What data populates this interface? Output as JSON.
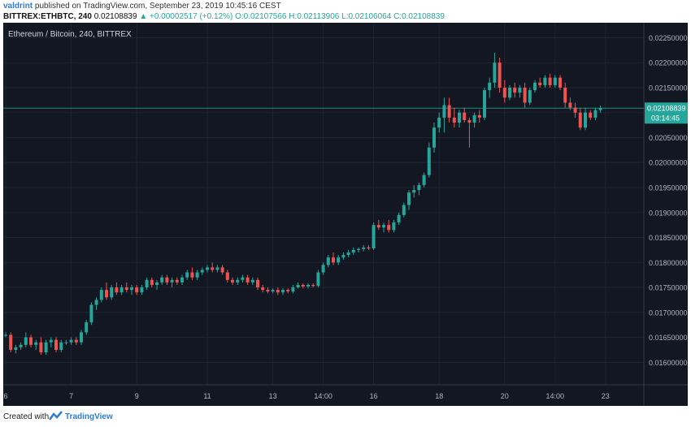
{
  "header": {
    "user": "valdrint",
    "published": "published on TradingView.com, September 23, 2019 10:45:16 CEST",
    "symbol": "BITTREX:ETHBTC, 240",
    "last": "0.02108839",
    "change": "+0.00002517 (+0.12%)",
    "ohlc": "O:0.02107566 H:0.02113906 L:0.02106064 C:0.02108839"
  },
  "footer": {
    "created": "Created with",
    "brand": "TradingView"
  },
  "chart_data": {
    "type": "candlestick",
    "title": "Ethereum / Bitcoin, 240, BITTREX",
    "ylim": [
      0.01555,
      0.0228
    ],
    "yticks": [
      "0.01600000",
      "0.01650000",
      "0.01700000",
      "0.01750000",
      "0.01800000",
      "0.01850000",
      "0.01900000",
      "0.01950000",
      "0.02000000",
      "0.02050000",
      "0.02100000",
      "0.02150000",
      "0.02200000",
      "0.02250000"
    ],
    "xticks": [
      {
        "label": "6",
        "index": 0
      },
      {
        "label": "7",
        "index": 13
      },
      {
        "label": "9",
        "index": 26
      },
      {
        "label": "11",
        "index": 40
      },
      {
        "label": "13",
        "index": 53
      },
      {
        "label": "14:00",
        "index": 63
      },
      {
        "label": "16",
        "index": 73
      },
      {
        "label": "18",
        "index": 86
      },
      {
        "label": "20",
        "index": 99
      },
      {
        "label": "14:00",
        "index": 109
      },
      {
        "label": "23",
        "index": 119
      }
    ],
    "last_price_label": "0.02108839",
    "countdown": "03:14:45",
    "colors": {
      "up": "#26a69a",
      "down": "#ef5350",
      "background": "#131722",
      "grid": "#1f2433",
      "text": "#b2b5be",
      "price_line": "#26a69a"
    },
    "grid": true,
    "candles": [
      [
        0.01655,
        0.0166,
        0.0165,
        0.01655
      ],
      [
        0.01655,
        0.0166,
        0.0162,
        0.01625
      ],
      [
        0.01625,
        0.01635,
        0.01618,
        0.0163
      ],
      [
        0.0163,
        0.0164,
        0.01625,
        0.01635
      ],
      [
        0.01635,
        0.0166,
        0.0163,
        0.0165
      ],
      [
        0.0165,
        0.01655,
        0.0163,
        0.01635
      ],
      [
        0.01635,
        0.01645,
        0.01625,
        0.0164
      ],
      [
        0.0164,
        0.0165,
        0.01615,
        0.0162
      ],
      [
        0.0162,
        0.01645,
        0.01615,
        0.0164
      ],
      [
        0.0164,
        0.0165,
        0.0163,
        0.01645
      ],
      [
        0.01645,
        0.0165,
        0.0162,
        0.01625
      ],
      [
        0.01625,
        0.01645,
        0.0162,
        0.0164
      ],
      [
        0.0164,
        0.01645,
        0.01635,
        0.0164
      ],
      [
        0.0164,
        0.0165,
        0.01635,
        0.01645
      ],
      [
        0.01645,
        0.0165,
        0.01635,
        0.0164
      ],
      [
        0.0164,
        0.01665,
        0.01635,
        0.0166
      ],
      [
        0.0166,
        0.01685,
        0.01655,
        0.0168
      ],
      [
        0.0168,
        0.0172,
        0.01675,
        0.01715
      ],
      [
        0.01715,
        0.0173,
        0.01705,
        0.01725
      ],
      [
        0.01725,
        0.0175,
        0.0172,
        0.01745
      ],
      [
        0.01745,
        0.0176,
        0.01725,
        0.0173
      ],
      [
        0.0173,
        0.01755,
        0.01725,
        0.0175
      ],
      [
        0.0175,
        0.0176,
        0.01735,
        0.0174
      ],
      [
        0.0174,
        0.01755,
        0.01735,
        0.0175
      ],
      [
        0.0175,
        0.0176,
        0.0174,
        0.01745
      ],
      [
        0.01745,
        0.01755,
        0.01735,
        0.0175
      ],
      [
        0.0175,
        0.01755,
        0.01735,
        0.0174
      ],
      [
        0.0174,
        0.01755,
        0.01735,
        0.0175
      ],
      [
        0.0175,
        0.0177,
        0.01745,
        0.01765
      ],
      [
        0.01765,
        0.0177,
        0.0175,
        0.01755
      ],
      [
        0.01755,
        0.01765,
        0.01745,
        0.0176
      ],
      [
        0.0176,
        0.01775,
        0.01755,
        0.0177
      ],
      [
        0.0177,
        0.01775,
        0.01755,
        0.0176
      ],
      [
        0.0176,
        0.0177,
        0.0175,
        0.01765
      ],
      [
        0.01765,
        0.0177,
        0.01755,
        0.0176
      ],
      [
        0.0176,
        0.01775,
        0.01755,
        0.0177
      ],
      [
        0.0177,
        0.01785,
        0.01765,
        0.0178
      ],
      [
        0.0178,
        0.0179,
        0.01765,
        0.0177
      ],
      [
        0.0177,
        0.01785,
        0.01765,
        0.0178
      ],
      [
        0.0178,
        0.0179,
        0.01775,
        0.01785
      ],
      [
        0.01785,
        0.01795,
        0.0178,
        0.0179
      ],
      [
        0.0179,
        0.018,
        0.0178,
        0.01785
      ],
      [
        0.01785,
        0.01795,
        0.0178,
        0.0179
      ],
      [
        0.0179,
        0.01795,
        0.01775,
        0.0178
      ],
      [
        0.0178,
        0.01785,
        0.0176,
        0.01765
      ],
      [
        0.01765,
        0.0177,
        0.01755,
        0.0176
      ],
      [
        0.0176,
        0.0177,
        0.01755,
        0.01765
      ],
      [
        0.01765,
        0.01775,
        0.0176,
        0.0177
      ],
      [
        0.0177,
        0.01775,
        0.01755,
        0.0176
      ],
      [
        0.0176,
        0.0177,
        0.01755,
        0.01765
      ],
      [
        0.01765,
        0.0177,
        0.01745,
        0.0175
      ],
      [
        0.0175,
        0.01755,
        0.0174,
        0.01745
      ],
      [
        0.01745,
        0.0175,
        0.01738,
        0.01742
      ],
      [
        0.01742,
        0.01748,
        0.01738,
        0.01745
      ],
      [
        0.01745,
        0.0175,
        0.01735,
        0.0174
      ],
      [
        0.0174,
        0.01748,
        0.01735,
        0.01745
      ],
      [
        0.01745,
        0.01748,
        0.01738,
        0.01742
      ],
      [
        0.01742,
        0.01755,
        0.01738,
        0.0175
      ],
      [
        0.0175,
        0.0176,
        0.01748,
        0.01755
      ],
      [
        0.01755,
        0.01758,
        0.01748,
        0.01752
      ],
      [
        0.01752,
        0.01758,
        0.01748,
        0.01755
      ],
      [
        0.01755,
        0.01758,
        0.0175,
        0.01753
      ],
      [
        0.01753,
        0.01785,
        0.0175,
        0.0178
      ],
      [
        0.0178,
        0.018,
        0.01775,
        0.01795
      ],
      [
        0.01795,
        0.01815,
        0.0179,
        0.0181
      ],
      [
        0.0181,
        0.0182,
        0.01795,
        0.018
      ],
      [
        0.018,
        0.01815,
        0.01795,
        0.0181
      ],
      [
        0.0181,
        0.0182,
        0.01805,
        0.01815
      ],
      [
        0.01815,
        0.01825,
        0.0181,
        0.0182
      ],
      [
        0.0182,
        0.0183,
        0.01815,
        0.01825
      ],
      [
        0.01825,
        0.0183,
        0.0182,
        0.01827
      ],
      [
        0.01827,
        0.01835,
        0.01822,
        0.0183
      ],
      [
        0.0183,
        0.01835,
        0.01825,
        0.01828
      ],
      [
        0.01828,
        0.0188,
        0.01825,
        0.01875
      ],
      [
        0.01875,
        0.01885,
        0.01865,
        0.0187
      ],
      [
        0.0187,
        0.0188,
        0.0186,
        0.01875
      ],
      [
        0.01875,
        0.01885,
        0.0186,
        0.01865
      ],
      [
        0.01865,
        0.01885,
        0.0186,
        0.0188
      ],
      [
        0.0188,
        0.019,
        0.01875,
        0.01895
      ],
      [
        0.01895,
        0.0192,
        0.0189,
        0.01915
      ],
      [
        0.01915,
        0.01945,
        0.01905,
        0.0194
      ],
      [
        0.0194,
        0.01955,
        0.0193,
        0.01945
      ],
      [
        0.01945,
        0.0196,
        0.01935,
        0.01955
      ],
      [
        0.01955,
        0.0198,
        0.0195,
        0.01975
      ],
      [
        0.01975,
        0.0204,
        0.0197,
        0.0203
      ],
      [
        0.0203,
        0.0208,
        0.0202,
        0.0207
      ],
      [
        0.0207,
        0.021,
        0.0206,
        0.0209
      ],
      [
        0.0209,
        0.0213,
        0.0206,
        0.02115
      ],
      [
        0.02115,
        0.0213,
        0.0208,
        0.0209
      ],
      [
        0.0209,
        0.0211,
        0.0207,
        0.0208
      ],
      [
        0.0208,
        0.02105,
        0.0207,
        0.021
      ],
      [
        0.021,
        0.0211,
        0.0208,
        0.02085
      ],
      [
        0.02085,
        0.0209,
        0.0203,
        0.0208
      ],
      [
        0.0208,
        0.021,
        0.0207,
        0.02095
      ],
      [
        0.02095,
        0.02105,
        0.0208,
        0.0209
      ],
      [
        0.0209,
        0.0215,
        0.02085,
        0.02145
      ],
      [
        0.02145,
        0.0217,
        0.0213,
        0.0216
      ],
      [
        0.0216,
        0.0222,
        0.0215,
        0.022
      ],
      [
        0.022,
        0.0221,
        0.0214,
        0.0215
      ],
      [
        0.0215,
        0.02165,
        0.0212,
        0.0213
      ],
      [
        0.0213,
        0.02155,
        0.02125,
        0.0215
      ],
      [
        0.0215,
        0.0216,
        0.0213,
        0.0214
      ],
      [
        0.0214,
        0.02155,
        0.0213,
        0.0215
      ],
      [
        0.0215,
        0.0216,
        0.0211,
        0.0212
      ],
      [
        0.0212,
        0.0215,
        0.02115,
        0.02145
      ],
      [
        0.02145,
        0.02165,
        0.0214,
        0.0216
      ],
      [
        0.0216,
        0.0217,
        0.0215,
        0.02155
      ],
      [
        0.02155,
        0.02175,
        0.0215,
        0.0217
      ],
      [
        0.0217,
        0.02178,
        0.0215,
        0.02155
      ],
      [
        0.02155,
        0.02175,
        0.0215,
        0.0217
      ],
      [
        0.0217,
        0.02175,
        0.02145,
        0.0215
      ],
      [
        0.0215,
        0.0216,
        0.0211,
        0.0212
      ],
      [
        0.0212,
        0.0213,
        0.02105,
        0.0211
      ],
      [
        0.0211,
        0.0212,
        0.0209,
        0.021
      ],
      [
        0.021,
        0.0211,
        0.02065,
        0.0207
      ],
      [
        0.0207,
        0.0211,
        0.02065,
        0.021
      ],
      [
        0.021,
        0.02105,
        0.02085,
        0.0209
      ],
      [
        0.0209,
        0.0211,
        0.02085,
        0.02105
      ],
      [
        0.02105,
        0.02114,
        0.021,
        0.02109
      ]
    ]
  }
}
